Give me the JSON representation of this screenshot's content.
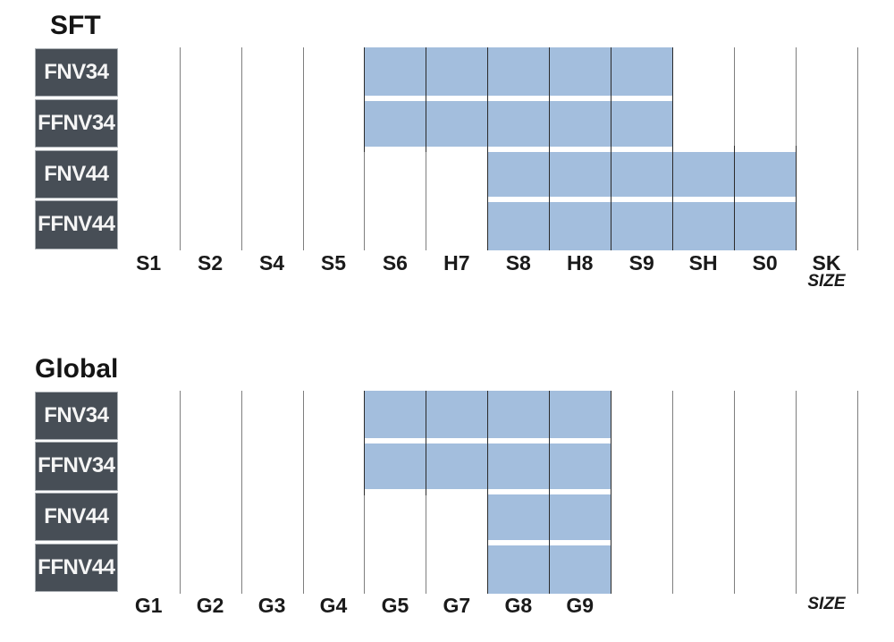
{
  "colors": {
    "bar_fill": "#a3bedd",
    "label_box_bg": "#474e56",
    "label_box_border": "#a9aeb3",
    "label_box_text": "#f5f5f5",
    "gridline": "#7e7e7e",
    "gridline_dark": "#2b2b2b",
    "text": "#1a1a1a"
  },
  "chart_data": [
    {
      "type": "bar",
      "variant": "size-range-matrix",
      "title": "SFT",
      "xlabel": "SIZE",
      "categories": [
        "S1",
        "S2",
        "S4",
        "S5",
        "S6",
        "H7",
        "S8",
        "H8",
        "S9",
        "SH",
        "S0",
        "SK"
      ],
      "legend_position": "none",
      "grid": "vertical-only",
      "series": [
        {
          "name": "FNV34",
          "sizes": [
            "S6",
            "H7",
            "S8",
            "H8",
            "S9"
          ],
          "col_range": [
            4,
            8
          ]
        },
        {
          "name": "FFNV34",
          "sizes": [
            "S6",
            "H7",
            "S8",
            "H8",
            "S9"
          ],
          "col_range": [
            4,
            8
          ]
        },
        {
          "name": "FNV44",
          "sizes": [
            "S8",
            "H8",
            "S9",
            "SH",
            "S0"
          ],
          "col_range": [
            6,
            10
          ]
        },
        {
          "name": "FFNV44",
          "sizes": [
            "S8",
            "H8",
            "S9",
            "SH",
            "S0"
          ],
          "col_range": [
            6,
            10
          ]
        }
      ]
    },
    {
      "type": "bar",
      "variant": "size-range-matrix",
      "title": "Global",
      "xlabel": "SIZE",
      "categories": [
        "G1",
        "G2",
        "G3",
        "G4",
        "G5",
        "G7",
        "G8",
        "G9",
        "",
        "",
        "",
        ""
      ],
      "legend_position": "none",
      "grid": "vertical-only",
      "series": [
        {
          "name": "FNV34",
          "sizes": [
            "G5",
            "G7",
            "G8",
            "G9"
          ],
          "col_range": [
            4,
            7
          ]
        },
        {
          "name": "FFNV34",
          "sizes": [
            "G5",
            "G7",
            "G8",
            "G9"
          ],
          "col_range": [
            4,
            7
          ]
        },
        {
          "name": "FNV44",
          "sizes": [
            "G8",
            "G9"
          ],
          "col_range": [
            6,
            7
          ]
        },
        {
          "name": "FFNV44",
          "sizes": [
            "G8",
            "G9"
          ],
          "col_range": [
            6,
            7
          ]
        }
      ]
    }
  ]
}
